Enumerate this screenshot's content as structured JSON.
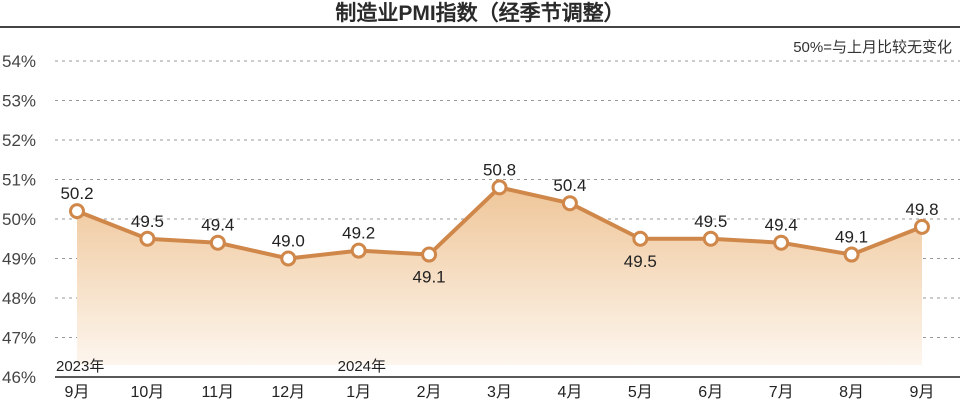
{
  "chart_data": {
    "type": "area",
    "title": "制造业PMI指数（经季节调整）",
    "annotation": "50%=与上月比较无变化",
    "xlabel": "",
    "ylabel": "",
    "categories": [
      "9月",
      "10月",
      "11月",
      "12月",
      "1月",
      "2月",
      "3月",
      "4月",
      "5月",
      "6月",
      "7月",
      "8月",
      "9月"
    ],
    "year_labels": [
      {
        "index": 0,
        "label": "2023年"
      },
      {
        "index": 4,
        "label": "2024年"
      }
    ],
    "values": [
      50.2,
      49.5,
      49.4,
      49.0,
      49.2,
      49.1,
      50.8,
      50.4,
      49.5,
      49.5,
      49.4,
      49.1,
      49.8
    ],
    "value_labels": [
      "50.2",
      "49.5",
      "49.4",
      "49.0",
      "49.2",
      "49.1",
      "50.8",
      "50.4",
      "49.5",
      "49.5",
      "49.4",
      "49.1",
      "49.8"
    ],
    "label_positions": [
      "above",
      "above",
      "above",
      "above",
      "above",
      "below",
      "above",
      "above",
      "below",
      "above",
      "above",
      "above",
      "above"
    ],
    "ylim": [
      46,
      54
    ],
    "yticks": [
      "46%",
      "47%",
      "48%",
      "49%",
      "50%",
      "51%",
      "52%",
      "53%",
      "54%"
    ],
    "grid": true,
    "colors": {
      "line": "#d0874a",
      "fill_top": "#efc699",
      "fill_bottom": "#fdf6ee",
      "marker_fill": "#ffffff"
    }
  }
}
